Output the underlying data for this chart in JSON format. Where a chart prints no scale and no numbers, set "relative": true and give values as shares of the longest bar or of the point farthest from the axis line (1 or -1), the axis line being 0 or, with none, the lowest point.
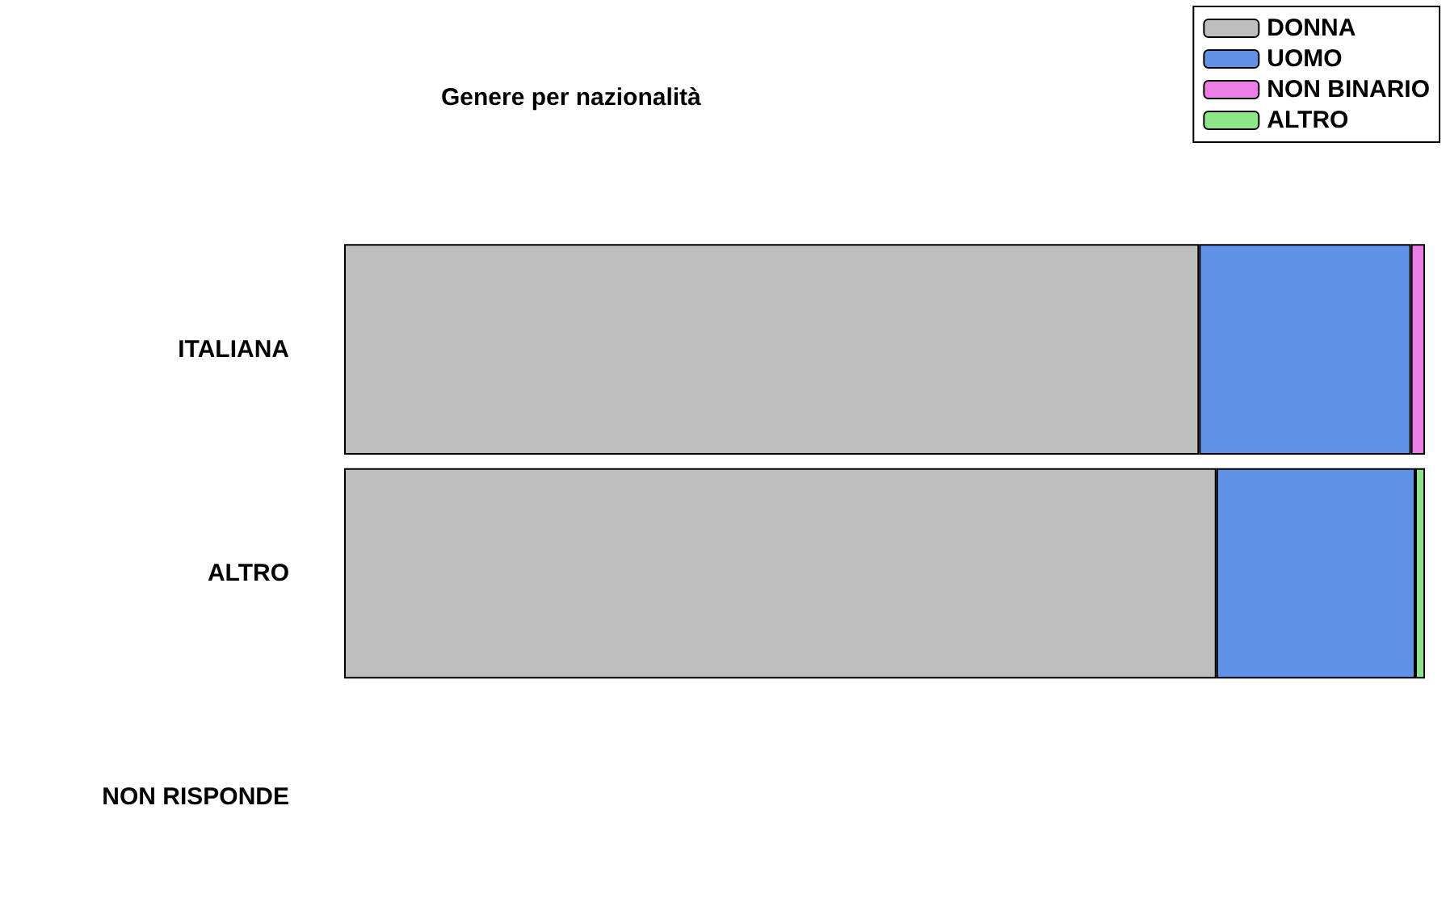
{
  "chart_data": {
    "type": "bar",
    "title": "Genere per nazionalità",
    "orientation": "horizontal",
    "stacked": true,
    "relative": true,
    "legend": "top right",
    "categories": [
      "ITALIANA",
      "ALTRO",
      "NON RISPONDE"
    ],
    "series": [
      {
        "name": "DONNA",
        "color": "#bebebe",
        "values": [
          0.791,
          0.807,
          null
        ]
      },
      {
        "name": "UOMO",
        "color": "#6291e8",
        "values": [
          0.196,
          0.184,
          null
        ]
      },
      {
        "name": "NON BINARIO",
        "color": "#ec7de6",
        "values": [
          0.013,
          0,
          null
        ]
      },
      {
        "name": "ALTRO",
        "color": "#8ee68a",
        "values": [
          0,
          0.009,
          null
        ]
      }
    ]
  }
}
